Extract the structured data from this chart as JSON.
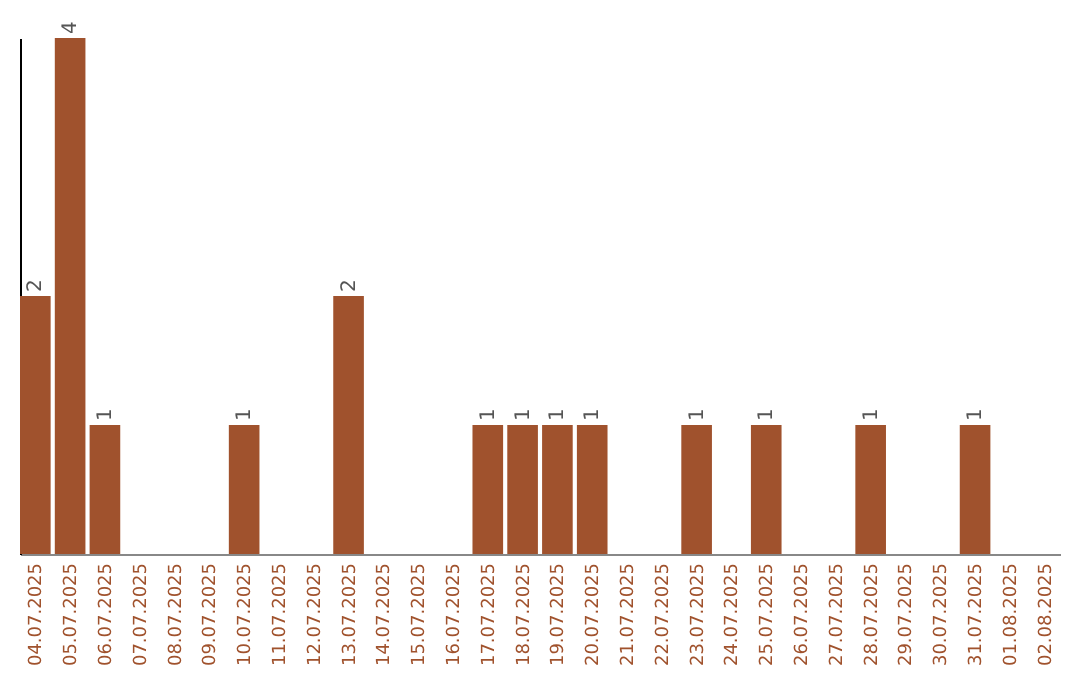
{
  "chart_data": {
    "type": "bar",
    "categories": [
      "04.07.2025",
      "05.07.2025",
      "06.07.2025",
      "07.07.2025",
      "08.07.2025",
      "09.07.2025",
      "10.07.2025",
      "11.07.2025",
      "12.07.2025",
      "13.07.2025",
      "14.07.2025",
      "15.07.2025",
      "16.07.2025",
      "17.07.2025",
      "18.07.2025",
      "19.07.2025",
      "20.07.2025",
      "21.07.2025",
      "22.07.2025",
      "23.07.2025",
      "24.07.2025",
      "25.07.2025",
      "26.07.2025",
      "27.07.2025",
      "28.07.2025",
      "29.07.2025",
      "30.07.2025",
      "31.07.2025",
      "01.08.2025",
      "02.08.2025"
    ],
    "values": [
      2,
      4,
      1,
      0,
      0,
      0,
      1,
      0,
      0,
      2,
      0,
      0,
      0,
      1,
      1,
      1,
      1,
      0,
      0,
      1,
      0,
      1,
      0,
      0,
      1,
      0,
      0,
      1,
      0,
      0
    ],
    "value_labels": [
      "2",
      "4",
      "1",
      null,
      null,
      null,
      "1",
      null,
      null,
      "2",
      null,
      null,
      null,
      "1",
      "1",
      "1",
      "1",
      null,
      null,
      "1",
      null,
      "1",
      null,
      null,
      "1",
      null,
      null,
      "1",
      null,
      null
    ],
    "color": "#a0522d",
    "tick_labels": "x",
    "grid": false
  }
}
